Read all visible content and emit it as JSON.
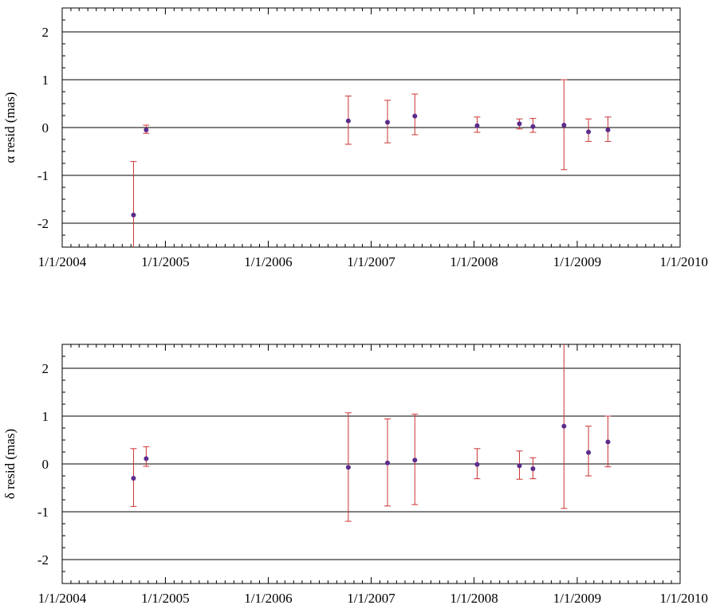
{
  "colors": {
    "point": "#5b2c8c",
    "errorbar": "#cc3333",
    "axis": "#000000"
  },
  "chart_data": [
    {
      "type": "scatter",
      "ylabel": "α resid (mas)",
      "xlabel": "",
      "x_tick_labels": [
        "1/1/2004",
        "1/1/2005",
        "1/1/2006",
        "1/1/2007",
        "1/1/2008",
        "1/1/2009",
        "1/1/2010"
      ],
      "y_tick_labels": [
        "2",
        "1",
        "0",
        "-1",
        "-2"
      ],
      "y_ticks": [
        2,
        1,
        0,
        -1,
        -2
      ],
      "reference_lines": [
        -2,
        -1,
        0,
        1,
        2
      ],
      "xlim": [
        "2004-01-01",
        "2010-01-01"
      ],
      "ylim": [
        -2.5,
        2.5
      ],
      "series": [
        {
          "points": [
            {
              "date": "2004-09-10",
              "y": -1.83,
              "ylo": -2.5,
              "yhi": -0.71
            },
            {
              "date": "2004-10-25",
              "y": -0.05,
              "ylo": -0.12,
              "yhi": 0.05
            },
            {
              "date": "2006-10-12",
              "y": 0.14,
              "ylo": -0.35,
              "yhi": 0.66
            },
            {
              "date": "2007-02-28",
              "y": 0.11,
              "ylo": -0.32,
              "yhi": 0.57
            },
            {
              "date": "2007-06-05",
              "y": 0.24,
              "ylo": -0.15,
              "yhi": 0.7
            },
            {
              "date": "2008-01-12",
              "y": 0.04,
              "ylo": -0.1,
              "yhi": 0.22
            },
            {
              "date": "2008-06-10",
              "y": 0.08,
              "ylo": -0.03,
              "yhi": 0.18
            },
            {
              "date": "2008-07-28",
              "y": 0.02,
              "ylo": -0.1,
              "yhi": 0.19
            },
            {
              "date": "2008-11-15",
              "y": 0.05,
              "ylo": -0.88,
              "yhi": 1.0
            },
            {
              "date": "2009-02-10",
              "y": -0.09,
              "ylo": -0.29,
              "yhi": 0.18
            },
            {
              "date": "2009-04-20",
              "y": -0.05,
              "ylo": -0.29,
              "yhi": 0.22
            }
          ]
        }
      ]
    },
    {
      "type": "scatter",
      "ylabel": "δ resid (mas)",
      "xlabel": "",
      "x_tick_labels": [
        "1/1/2004",
        "1/1/2005",
        "1/1/2006",
        "1/1/2007",
        "1/1/2008",
        "1/1/2009",
        "1/1/2010"
      ],
      "y_tick_labels": [
        "2",
        "1",
        "0",
        "-1",
        "-2"
      ],
      "y_ticks": [
        2,
        1,
        0,
        -1,
        -2
      ],
      "reference_lines": [
        -2,
        -1,
        0,
        1,
        2
      ],
      "xlim": [
        "2004-01-01",
        "2010-01-01"
      ],
      "ylim": [
        -2.5,
        2.5
      ],
      "series": [
        {
          "points": [
            {
              "date": "2004-09-10",
              "y": -0.3,
              "ylo": -0.89,
              "yhi": 0.32
            },
            {
              "date": "2004-10-25",
              "y": 0.11,
              "ylo": -0.05,
              "yhi": 0.36
            },
            {
              "date": "2006-10-12",
              "y": -0.07,
              "ylo": -1.2,
              "yhi": 1.07
            },
            {
              "date": "2007-02-28",
              "y": 0.02,
              "ylo": -0.88,
              "yhi": 0.94
            },
            {
              "date": "2007-06-05",
              "y": 0.08,
              "ylo": -0.85,
              "yhi": 1.04
            },
            {
              "date": "2008-01-12",
              "y": -0.01,
              "ylo": -0.31,
              "yhi": 0.32
            },
            {
              "date": "2008-06-10",
              "y": -0.04,
              "ylo": -0.32,
              "yhi": 0.27
            },
            {
              "date": "2008-07-28",
              "y": -0.1,
              "ylo": -0.31,
              "yhi": 0.13
            },
            {
              "date": "2008-11-15",
              "y": 0.79,
              "ylo": -0.93,
              "yhi": 2.5
            },
            {
              "date": "2009-02-10",
              "y": 0.24,
              "ylo": -0.25,
              "yhi": 0.79
            },
            {
              "date": "2009-04-20",
              "y": 0.46,
              "ylo": -0.06,
              "yhi": 1.0
            }
          ]
        }
      ]
    }
  ]
}
